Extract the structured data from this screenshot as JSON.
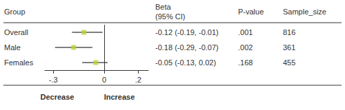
{
  "chart_data": {
    "type": "forest",
    "categories": [
      "Overall",
      "Male",
      "Females"
    ],
    "values": [
      -0.12,
      -0.18,
      -0.05
    ],
    "value_labels": [
      "-0.12 (-0.19, -0.01)",
      "-0.18 (-0.29, -0.07)",
      "-0.05 (-0.13, 0.02)"
    ],
    "ci_low": [
      -0.19,
      -0.29,
      -0.13
    ],
    "ci_high": [
      -0.01,
      -0.07,
      0.02
    ],
    "p_values": [
      0.001,
      0.002,
      0.168
    ],
    "p_value_labels": [
      ".001",
      ".002",
      ".168"
    ],
    "sample_sizes": [
      816,
      361,
      455
    ],
    "headers": [
      "Group",
      [
        "Beta",
        "(95% CI)"
      ],
      "P-value",
      "Sample_size"
    ],
    "xlim": [
      -0.35,
      0.26
    ],
    "xticks": [
      {
        "value": -0.3,
        "label": "-.3"
      },
      0,
      {
        "value": 0.2,
        "label": ".2"
      }
    ],
    "reference_x": 0,
    "annotations": [
      "Decrease",
      "Increase"
    ],
    "grid": false,
    "marker": "square"
  }
}
